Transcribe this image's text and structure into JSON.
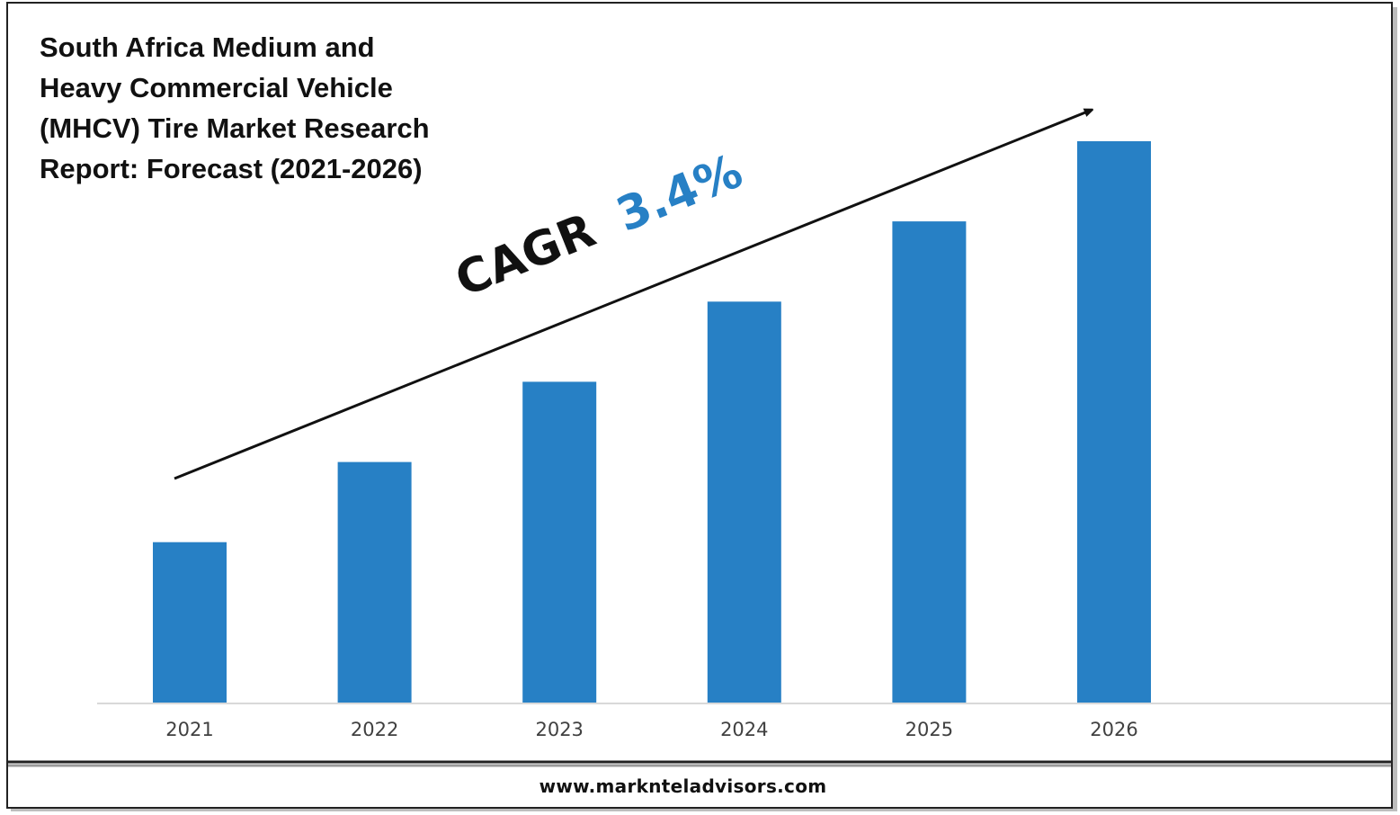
{
  "title_lines": [
    "South Africa Medium and",
    "Heavy Commercial Vehicle",
    "(MHCV) Tire Market Research",
    "Report: Forecast (2021-2026)"
  ],
  "annotation": {
    "label": "CAGR",
    "value": "3.4%",
    "label_color": "#111111",
    "value_color": "#2780c5"
  },
  "footer": {
    "url": "www.marknteladvisors.com"
  },
  "chart_data": {
    "type": "bar",
    "categories": [
      "2021",
      "2022",
      "2023",
      "2024",
      "2025",
      "2026"
    ],
    "values": [
      1,
      1.5,
      2,
      2.5,
      3,
      3.5
    ],
    "title": "South Africa Medium and Heavy Commercial Vehicle (MHCV) Tire Market Research Report: Forecast (2021-2026)",
    "xlabel": "",
    "ylabel": "",
    "ylim": [
      0,
      3.5
    ],
    "grid": false,
    "legend": "none",
    "bar_color": "#2780c5",
    "trend_arrow": true
  }
}
